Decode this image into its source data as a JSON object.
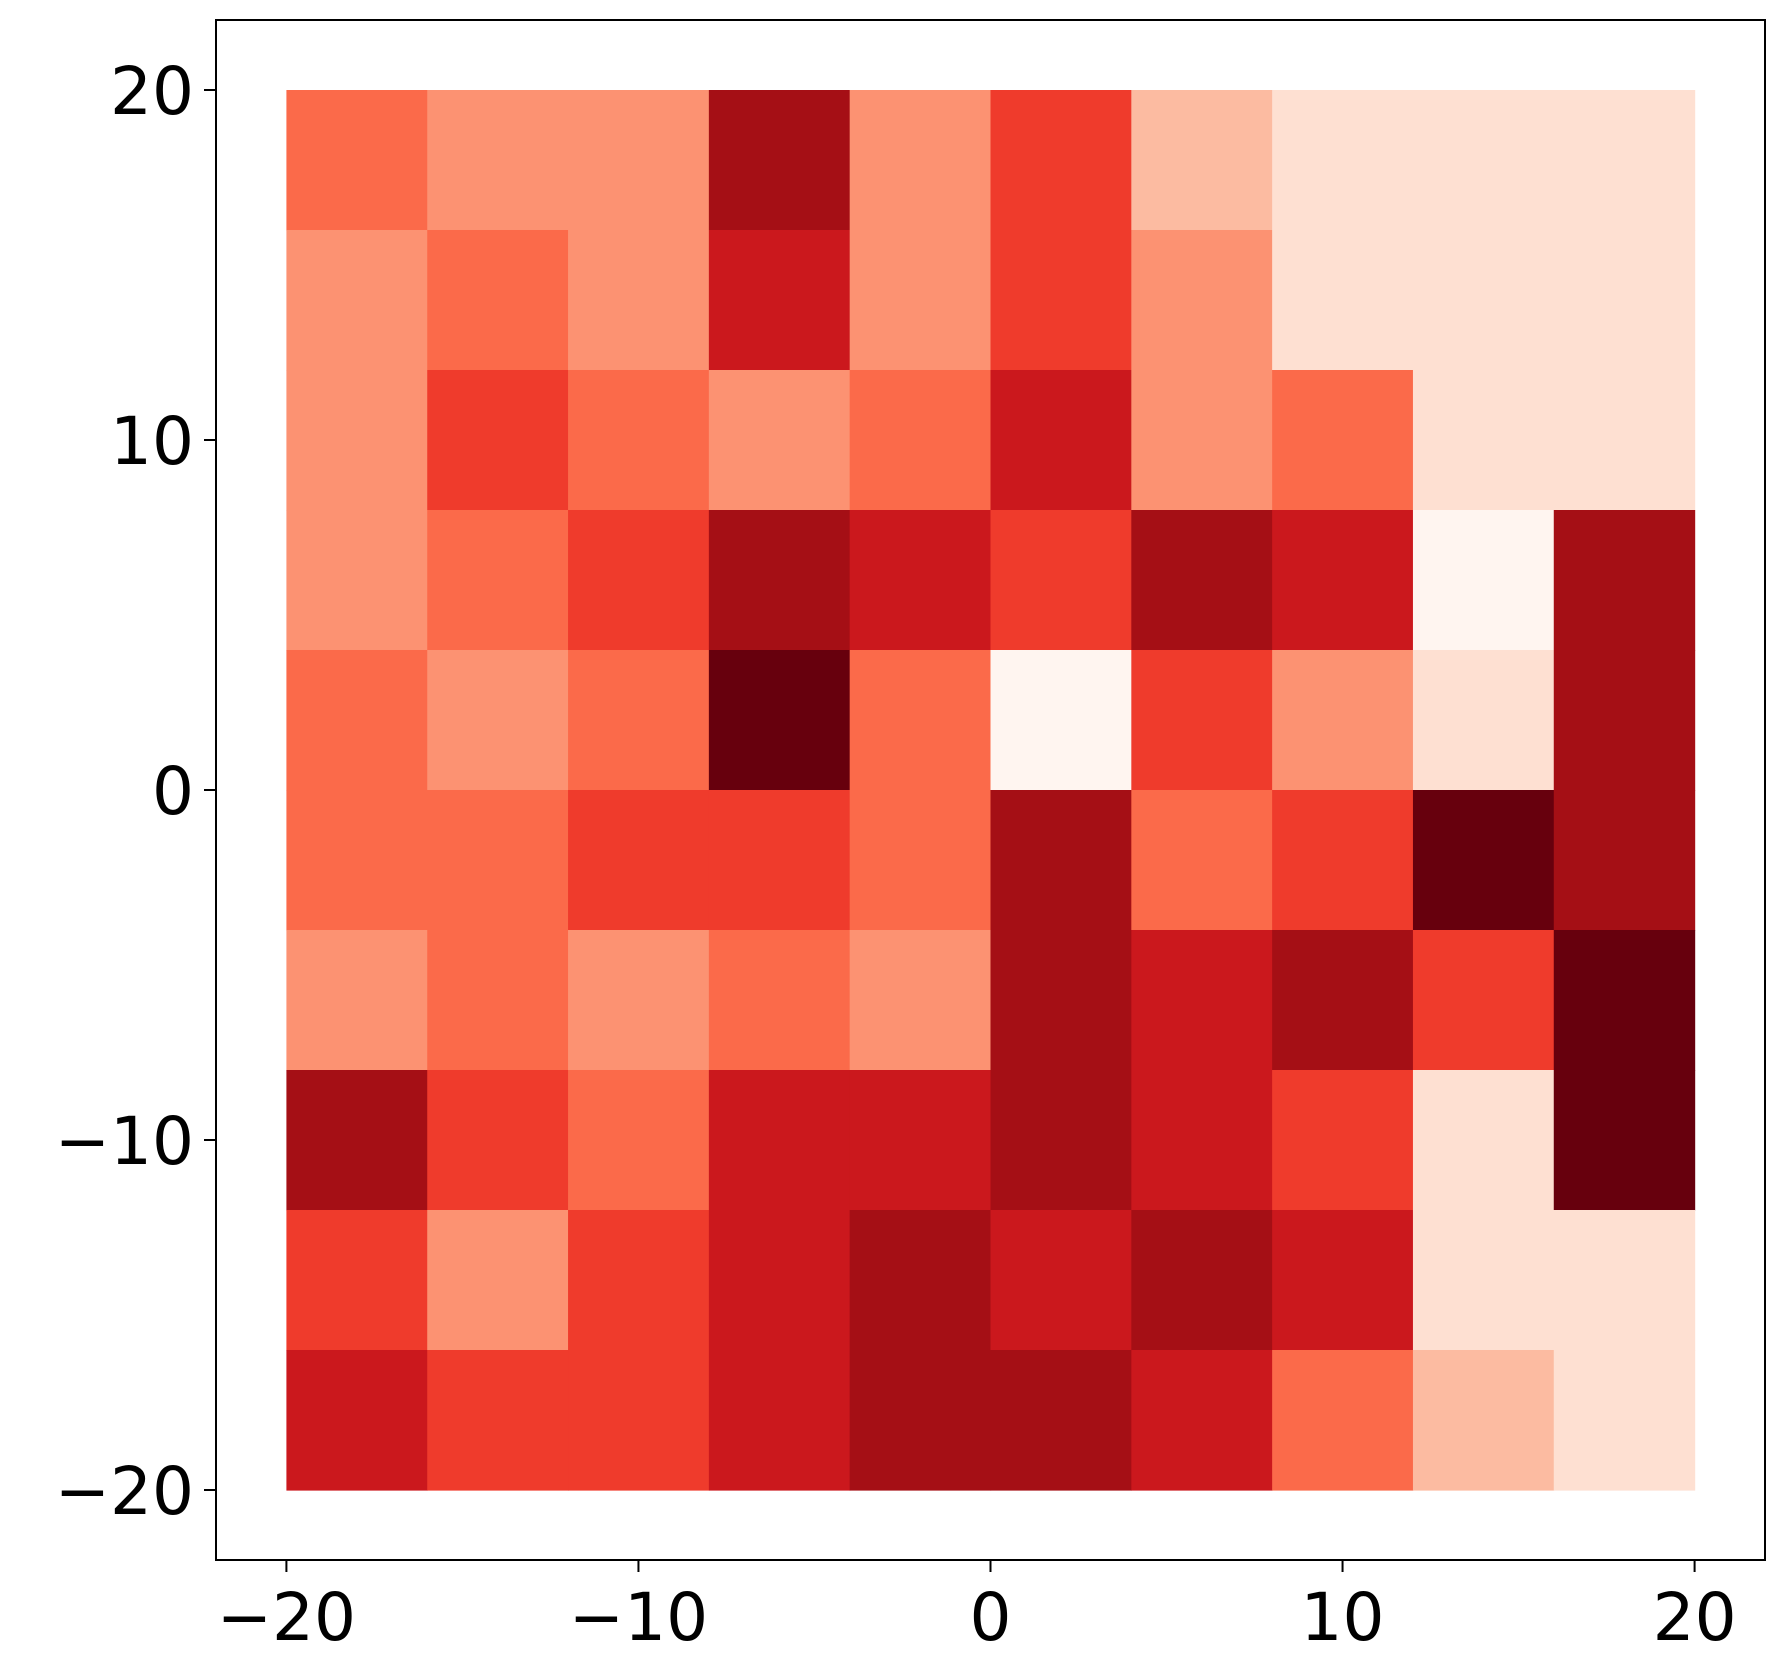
{
  "chart_data": {
    "type": "heatmap",
    "title": "",
    "xlabel": "",
    "ylabel": "",
    "xlim": [
      -22,
      22
    ],
    "ylim": [
      -22,
      22
    ],
    "grid_extent": {
      "x": [
        -20,
        20
      ],
      "y": [
        -20,
        20
      ]
    },
    "grid": false,
    "legend": "none",
    "colormap": "Reds",
    "palette": [
      "#fff5f0",
      "#fee0d2",
      "#fcbba1",
      "#fc9272",
      "#fb6a4a",
      "#ef3b2c",
      "#cb181d",
      "#a50f15",
      "#67000d"
    ],
    "x_ticks": [
      -20,
      -10,
      0,
      10,
      20
    ],
    "y_ticks": [
      -20,
      -10,
      0,
      10,
      20
    ],
    "x_tick_labels": [
      "−20",
      "−10",
      "0",
      "10",
      "20"
    ],
    "y_tick_labels": [
      "−20",
      "−10",
      "0",
      "10",
      "20"
    ],
    "region_note": "Approximate dominant color class per 4x4 data-unit cell, rows from y=+20 (top) to y=-20 (bottom), columns from x=-20 to x=+20; values index into palette.",
    "regions": [
      [
        4,
        3,
        3,
        7,
        3,
        5,
        2,
        1,
        1,
        1
      ],
      [
        3,
        4,
        3,
        6,
        3,
        5,
        3,
        1,
        1,
        1
      ],
      [
        3,
        5,
        4,
        3,
        4,
        6,
        3,
        4,
        1,
        1
      ],
      [
        3,
        4,
        5,
        7,
        6,
        5,
        7,
        6,
        0,
        7
      ],
      [
        4,
        3,
        4,
        8,
        4,
        0,
        5,
        3,
        1,
        7
      ],
      [
        4,
        4,
        5,
        5,
        4,
        7,
        4,
        5,
        8,
        7
      ],
      [
        3,
        4,
        3,
        4,
        3,
        7,
        6,
        7,
        5,
        8
      ],
      [
        7,
        5,
        4,
        6,
        6,
        7,
        6,
        5,
        1,
        8
      ],
      [
        5,
        3,
        5,
        6,
        7,
        6,
        7,
        6,
        1,
        1
      ],
      [
        6,
        5,
        5,
        6,
        7,
        7,
        6,
        4,
        2,
        1
      ]
    ]
  }
}
